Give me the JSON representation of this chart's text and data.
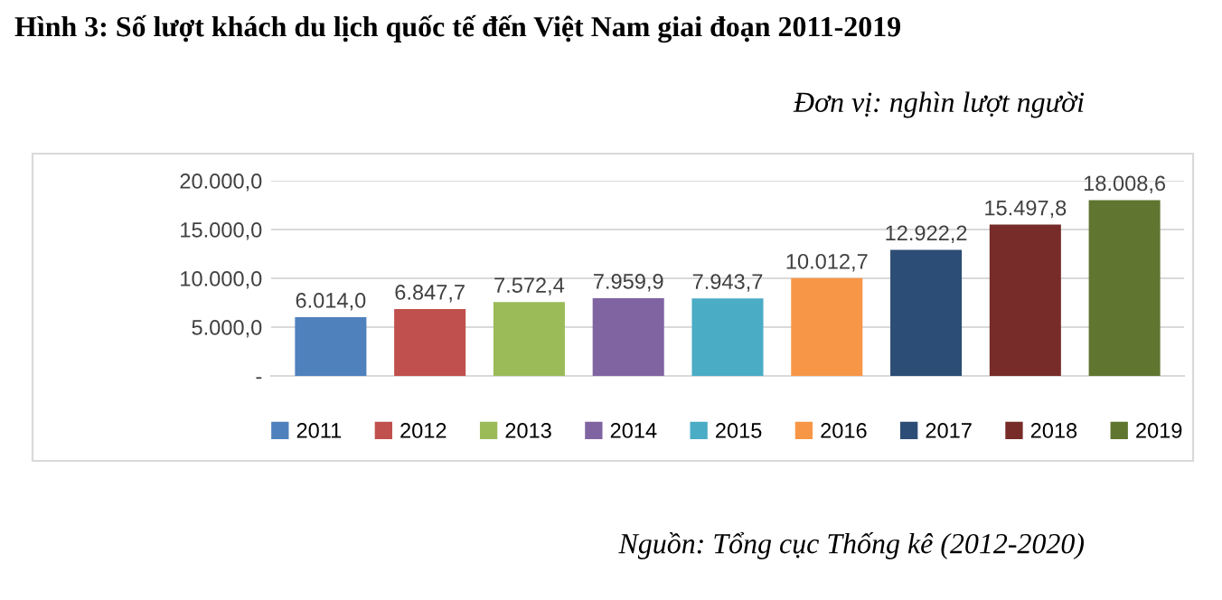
{
  "chart_data": {
    "type": "bar",
    "title": "Hình 3: Số lượt khách du lịch quốc tế đến Việt Nam giai đoạn 2011-2019",
    "subtitle": "Đơn vị: nghìn lượt người",
    "annotations": [
      "Nguồn: Tổng cục Thống kê (2012-2020)"
    ],
    "categories": [
      null,
      null,
      null,
      null,
      null,
      null,
      null,
      null,
      null
    ],
    "series": [
      {
        "name": "2011",
        "color": "#4f81bd",
        "values": [
          6014.0,
          null,
          null,
          null,
          null,
          null,
          null,
          null,
          null
        ],
        "value_labels": [
          "6.014,0",
          null,
          null,
          null,
          null,
          null,
          null,
          null,
          null
        ]
      },
      {
        "name": "2012",
        "color": "#c0504d",
        "values": [
          null,
          6847.7,
          null,
          null,
          null,
          null,
          null,
          null,
          null
        ],
        "value_labels": [
          null,
          "6.847,7",
          null,
          null,
          null,
          null,
          null,
          null,
          null
        ]
      },
      {
        "name": "2013",
        "color": "#9bbb59",
        "values": [
          null,
          null,
          7572.4,
          null,
          null,
          null,
          null,
          null,
          null
        ],
        "value_labels": [
          null,
          null,
          "7.572,4",
          null,
          null,
          null,
          null,
          null,
          null
        ]
      },
      {
        "name": "2014",
        "color": "#8064a2",
        "values": [
          null,
          null,
          null,
          7959.9,
          null,
          null,
          null,
          null,
          null
        ],
        "value_labels": [
          null,
          null,
          null,
          "7.959,9",
          null,
          null,
          null,
          null,
          null
        ]
      },
      {
        "name": "2015",
        "color": "#4bacc6",
        "values": [
          null,
          null,
          null,
          null,
          7943.7,
          null,
          null,
          null,
          null
        ],
        "value_labels": [
          null,
          null,
          null,
          null,
          "7.943,7",
          null,
          null,
          null,
          null
        ]
      },
      {
        "name": "2016",
        "color": "#f79646",
        "values": [
          null,
          null,
          null,
          null,
          null,
          10012.7,
          null,
          null,
          null
        ],
        "value_labels": [
          null,
          null,
          null,
          null,
          null,
          "10.012,7",
          null,
          null,
          null
        ]
      },
      {
        "name": "2017",
        "color": "#2c4d75",
        "values": [
          null,
          null,
          null,
          null,
          null,
          null,
          12922.2,
          null,
          null
        ],
        "value_labels": [
          null,
          null,
          null,
          null,
          null,
          null,
          "12.922,2",
          null,
          null
        ]
      },
      {
        "name": "2018",
        "color": "#772c2a",
        "values": [
          null,
          null,
          null,
          null,
          null,
          null,
          null,
          15497.8,
          null
        ],
        "value_labels": [
          null,
          null,
          null,
          null,
          null,
          null,
          null,
          "15.497,8",
          null
        ]
      },
      {
        "name": "2019",
        "color": "#5f7530",
        "values": [
          null,
          null,
          null,
          null,
          null,
          null,
          null,
          null,
          18008.6
        ],
        "value_labels": [
          null,
          null,
          null,
          null,
          null,
          null,
          null,
          null,
          "18.008,6"
        ]
      }
    ],
    "ylim": [
      0,
      20000
    ],
    "yticks": [
      {
        "value": 0,
        "label": "-"
      },
      {
        "value": 5000,
        "label": "5.000,0"
      },
      {
        "value": 10000,
        "label": "10.000,0"
      },
      {
        "value": 15000,
        "label": "15.000,0"
      },
      {
        "value": 20000,
        "label": "20.000,0"
      }
    ],
    "grid": "y",
    "legend": "bottom"
  }
}
